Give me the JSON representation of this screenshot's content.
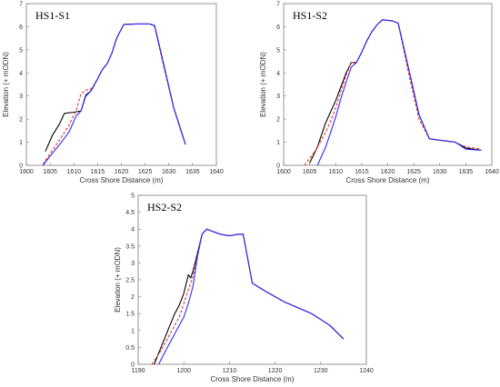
{
  "colors": {
    "measured": "#000000",
    "model_a": "#e8302a",
    "model_b": "#2b2bff",
    "axis": "#7a7a7a"
  },
  "chart_data": [
    {
      "type": "line",
      "title": "HS1-S1",
      "xlabel": "Cross Shore Distance (m)",
      "ylabel": "Elevation (+ mODN)",
      "xlim": [
        1600,
        1640
      ],
      "ylim": [
        0,
        7
      ],
      "xticks": [
        1600,
        1605,
        1610,
        1615,
        1620,
        1625,
        1630,
        1635,
        1640
      ],
      "yticks": [
        0,
        1,
        2,
        3,
        4,
        5,
        6,
        7
      ],
      "grid": false,
      "series": [
        {
          "color": "black",
          "style": "solid",
          "x": [
            1604,
            1605.5,
            1607,
            1608,
            1610,
            1611.5,
            1612.5,
            1613.5,
            1614,
            1615,
            1616,
            1617,
            1618,
            1619,
            1620.5,
            1623,
            1626,
            1627,
            1629,
            1631,
            1633.5
          ],
          "y": [
            0.6,
            1.3,
            1.8,
            2.25,
            2.3,
            2.35,
            3.0,
            3.2,
            3.35,
            3.75,
            4.15,
            4.4,
            4.85,
            5.5,
            6.1,
            6.12,
            6.12,
            6.05,
            4.3,
            2.5,
            0.9
          ]
        },
        {
          "color": "red",
          "style": "dashed",
          "x": [
            1603.5,
            1605,
            1607,
            1609,
            1610.5,
            1611.5,
            1612.5,
            1613.5,
            1614,
            1615,
            1616,
            1617,
            1618,
            1619,
            1620.5,
            1623,
            1626,
            1627,
            1629,
            1631,
            1633.5
          ],
          "y": [
            0.05,
            0.5,
            1.1,
            1.75,
            2.4,
            3.1,
            3.25,
            3.3,
            3.4,
            3.75,
            4.15,
            4.4,
            4.85,
            5.5,
            6.1,
            6.12,
            6.12,
            6.0,
            4.2,
            2.5,
            0.9
          ]
        },
        {
          "color": "blue",
          "style": "solid",
          "x": [
            1603.5,
            1605,
            1607,
            1609,
            1610.5,
            1611.5,
            1612.5,
            1613.5,
            1614,
            1615,
            1616,
            1617,
            1618,
            1619,
            1620.5,
            1623,
            1626,
            1627,
            1629,
            1631,
            1633.5
          ],
          "y": [
            0.0,
            0.4,
            0.9,
            1.45,
            2.15,
            2.35,
            3.05,
            3.2,
            3.35,
            3.75,
            4.15,
            4.4,
            4.85,
            5.5,
            6.1,
            6.12,
            6.12,
            6.05,
            4.3,
            2.5,
            0.9
          ]
        }
      ]
    },
    {
      "type": "line",
      "title": "HS1-S2",
      "xlabel": "Cross Shore Distance (m)",
      "ylabel": "Elevation (+ mODN)",
      "xlim": [
        1600,
        1640
      ],
      "ylim": [
        0,
        7
      ],
      "xticks": [
        1600,
        1605,
        1610,
        1615,
        1620,
        1625,
        1630,
        1635,
        1640
      ],
      "yticks": [
        0,
        1,
        2,
        3,
        4,
        5,
        6,
        7
      ],
      "grid": false,
      "series": [
        {
          "color": "black",
          "style": "solid",
          "x": [
            1605,
            1606.5,
            1608,
            1609,
            1610,
            1611,
            1612,
            1613,
            1614,
            1615,
            1616,
            1617,
            1618,
            1619,
            1621,
            1622,
            1624,
            1626,
            1628,
            1633,
            1635,
            1638
          ],
          "y": [
            0.1,
            0.8,
            1.8,
            2.3,
            2.8,
            3.4,
            4.0,
            4.45,
            4.45,
            4.9,
            5.4,
            5.8,
            6.1,
            6.3,
            6.25,
            6.15,
            4.2,
            2.2,
            1.15,
            1.0,
            0.75,
            0.65
          ]
        },
        {
          "color": "red",
          "style": "dashed",
          "x": [
            1604,
            1606,
            1608,
            1609,
            1610,
            1611,
            1612,
            1613,
            1614,
            1615,
            1616,
            1617,
            1618,
            1619,
            1621,
            1622,
            1624,
            1626,
            1628,
            1633,
            1635,
            1638
          ],
          "y": [
            0.0,
            0.6,
            1.4,
            1.9,
            2.5,
            3.2,
            3.9,
            4.45,
            4.45,
            4.9,
            5.4,
            5.8,
            6.1,
            6.3,
            6.25,
            6.15,
            4.0,
            2.0,
            1.15,
            1.0,
            0.8,
            0.7
          ]
        },
        {
          "color": "blue",
          "style": "solid",
          "x": [
            1606.5,
            1608,
            1609,
            1610,
            1611,
            1612,
            1613,
            1614,
            1615,
            1616,
            1617,
            1618,
            1619,
            1621,
            1622,
            1624,
            1626,
            1628,
            1633,
            1635,
            1638
          ],
          "y": [
            0.0,
            0.75,
            1.4,
            2.1,
            2.9,
            3.6,
            4.25,
            4.45,
            4.9,
            5.4,
            5.8,
            6.1,
            6.3,
            6.25,
            6.15,
            4.2,
            2.2,
            1.15,
            1.0,
            0.7,
            0.65
          ]
        }
      ]
    },
    {
      "type": "line",
      "title": "HS2-S2",
      "xlabel": "Cross Shore Distance (m)",
      "ylabel": "Elevation (+ mODN)",
      "xlim": [
        1190,
        1240
      ],
      "ylim": [
        0,
        5
      ],
      "xticks": [
        1190,
        1200,
        1210,
        1220,
        1230,
        1240
      ],
      "yticks": [
        0,
        0.5,
        1,
        1.5,
        2,
        2.5,
        3,
        3.5,
        4,
        4.5,
        5
      ],
      "grid": false,
      "series": [
        {
          "color": "black",
          "style": "solid",
          "x": [
            1193.5,
            1195,
            1196.5,
            1198,
            1199,
            1200,
            1201,
            1201.5,
            1202,
            1203,
            1204,
            1205,
            1206,
            1208,
            1210,
            1212,
            1213,
            1215,
            1218,
            1222,
            1228,
            1232,
            1235
          ],
          "y": [
            0.0,
            0.5,
            1.0,
            1.5,
            1.75,
            2.1,
            2.65,
            2.55,
            2.75,
            3.3,
            3.85,
            4.0,
            3.95,
            3.85,
            3.8,
            3.85,
            3.85,
            2.4,
            2.15,
            1.85,
            1.5,
            1.15,
            0.75
          ]
        },
        {
          "color": "red",
          "style": "dashed",
          "x": [
            1193,
            1195,
            1197,
            1199,
            1200,
            1201,
            1202,
            1203,
            1204,
            1205,
            1206,
            1208,
            1210,
            1212,
            1213,
            1215,
            1218,
            1222,
            1228,
            1232,
            1235
          ],
          "y": [
            0.0,
            0.4,
            0.9,
            1.4,
            1.8,
            2.2,
            2.6,
            3.25,
            3.85,
            4.0,
            3.95,
            3.85,
            3.8,
            3.85,
            3.85,
            2.4,
            2.15,
            1.85,
            1.5,
            1.15,
            0.75
          ]
        },
        {
          "color": "blue",
          "style": "solid",
          "x": [
            1194.5,
            1196,
            1198,
            1200,
            1201,
            1202,
            1203,
            1204,
            1205,
            1206,
            1208,
            1210,
            1212,
            1213,
            1215,
            1218,
            1222,
            1228,
            1232,
            1235
          ],
          "y": [
            0.0,
            0.4,
            0.9,
            1.4,
            1.8,
            2.3,
            3.2,
            3.85,
            4.0,
            3.95,
            3.85,
            3.8,
            3.85,
            3.85,
            2.4,
            2.15,
            1.85,
            1.5,
            1.15,
            0.75
          ]
        }
      ]
    }
  ]
}
